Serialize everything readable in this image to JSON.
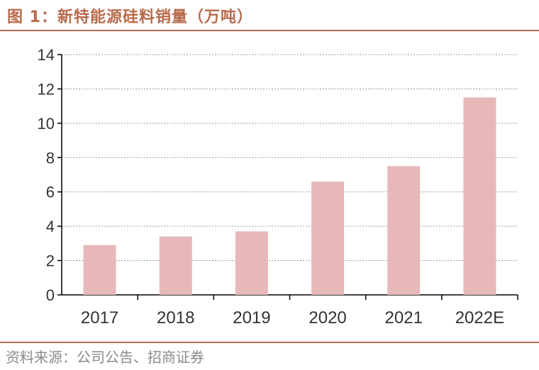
{
  "figure": {
    "title": "图 1：新特能源硅料销量（万吨）",
    "source": "资料来源：公司公告、招商证券"
  },
  "colors": {
    "bar": "#e6b8b7",
    "accent": "#b86a4b",
    "grid": "#9a9a9a",
    "axis": "#000000",
    "text": "#333333"
  },
  "chart_data": {
    "type": "bar",
    "categories": [
      "2017",
      "2018",
      "2019",
      "2020",
      "2021",
      "2022E"
    ],
    "values": [
      2.9,
      3.4,
      3.7,
      6.6,
      7.5,
      11.5
    ],
    "ylim": [
      0,
      14
    ],
    "yticks": [
      "0",
      "2",
      "4",
      "6",
      "8",
      "10",
      "12",
      "14"
    ],
    "grid": true
  }
}
